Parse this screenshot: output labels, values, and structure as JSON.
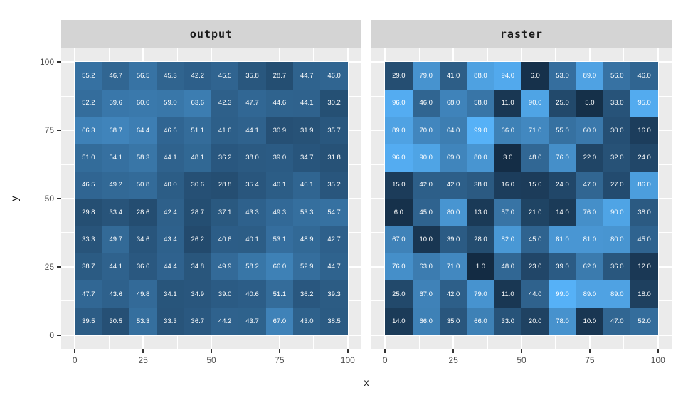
{
  "chart_data": {
    "type": "heatmap",
    "title": "",
    "xlabel": "x",
    "ylabel": "y",
    "x_ticks": [
      0,
      25,
      50,
      75,
      100
    ],
    "y_ticks": [
      100,
      75,
      50,
      25,
      0
    ],
    "xlim": [
      -5,
      105
    ],
    "ylim": [
      -5,
      105
    ],
    "grid": "major and minor white gridlines on grey panel",
    "legend_position": "none",
    "x_centers": [
      5,
      15,
      25,
      35,
      45,
      55,
      65,
      75,
      85,
      95
    ],
    "y_centers_top_to_bottom": [
      95,
      85,
      75,
      65,
      55,
      45,
      35,
      25,
      15,
      5
    ],
    "label_decimals": 1,
    "fill_scale": {
      "low": "#132B43",
      "high": "#56B1F7",
      "domain": [
        1,
        99
      ]
    },
    "facets": [
      {
        "name": "output",
        "values": [
          [
            55.2,
            46.7,
            56.5,
            45.3,
            42.2,
            45.5,
            35.8,
            28.7,
            44.7,
            46.0
          ],
          [
            52.2,
            59.6,
            60.6,
            59.0,
            63.6,
            42.3,
            47.7,
            44.6,
            44.1,
            30.2
          ],
          [
            66.3,
            68.7,
            64.4,
            46.6,
            51.1,
            41.6,
            44.1,
            30.9,
            31.9,
            35.7
          ],
          [
            51.0,
            54.1,
            58.3,
            44.1,
            48.1,
            36.2,
            38.0,
            39.0,
            34.7,
            31.8
          ],
          [
            46.5,
            49.2,
            50.8,
            40.0,
            30.6,
            28.8,
            35.4,
            40.1,
            46.1,
            35.2
          ],
          [
            29.8,
            33.4,
            28.6,
            42.4,
            28.7,
            37.1,
            43.3,
            49.3,
            53.3,
            54.7
          ],
          [
            33.3,
            49.7,
            34.6,
            43.4,
            26.2,
            40.6,
            40.1,
            53.1,
            48.9,
            42.7
          ],
          [
            38.7,
            44.1,
            36.6,
            44.4,
            34.8,
            49.9,
            58.2,
            66.0,
            52.9,
            44.7
          ],
          [
            47.7,
            43.6,
            49.8,
            34.1,
            34.9,
            39.0,
            40.6,
            51.1,
            36.2,
            39.3
          ],
          [
            39.5,
            30.5,
            53.3,
            33.3,
            36.7,
            44.2,
            43.7,
            67.0,
            43.0,
            38.5
          ]
        ]
      },
      {
        "name": "raster",
        "values": [
          [
            29.0,
            79.0,
            41.0,
            88.0,
            94.0,
            6.0,
            53.0,
            89.0,
            56.0,
            46.0
          ],
          [
            96.0,
            46.0,
            68.0,
            58.0,
            11.0,
            90.0,
            25.0,
            5.0,
            33.0,
            95.0
          ],
          [
            89.0,
            70.0,
            64.0,
            99.0,
            66.0,
            71.0,
            55.0,
            60.0,
            30.0,
            16.0
          ],
          [
            96.0,
            90.0,
            69.0,
            80.0,
            3.0,
            48.0,
            76.0,
            22.0,
            32.0,
            24.0
          ],
          [
            15.0,
            42.0,
            42.0,
            38.0,
            16.0,
            15.0,
            24.0,
            47.0,
            27.0,
            86.0
          ],
          [
            6.0,
            45.0,
            80.0,
            13.0,
            57.0,
            21.0,
            14.0,
            76.0,
            90.0,
            38.0
          ],
          [
            67.0,
            10.0,
            39.0,
            28.0,
            82.0,
            45.0,
            81.0,
            81.0,
            80.0,
            45.0
          ],
          [
            76.0,
            63.0,
            71.0,
            1.0,
            48.0,
            23.0,
            39.0,
            62.0,
            36.0,
            12.0
          ],
          [
            25.0,
            67.0,
            42.0,
            79.0,
            11.0,
            44.0,
            99.0,
            89.0,
            89.0,
            18.0
          ],
          [
            14.0,
            66.0,
            35.0,
            66.0,
            33.0,
            20.0,
            78.0,
            10.0,
            47.0,
            52.0
          ]
        ]
      }
    ],
    "colors": {
      "strip_bg": "#D4D4D4",
      "panel_bg": "#EBEBEB",
      "gridline": "#FFFFFF",
      "tick_mark": "#333333",
      "tick_label": "#4D4D4D",
      "axis_title": "#1A1A1A",
      "cell_text": "#FFFFFF"
    }
  }
}
